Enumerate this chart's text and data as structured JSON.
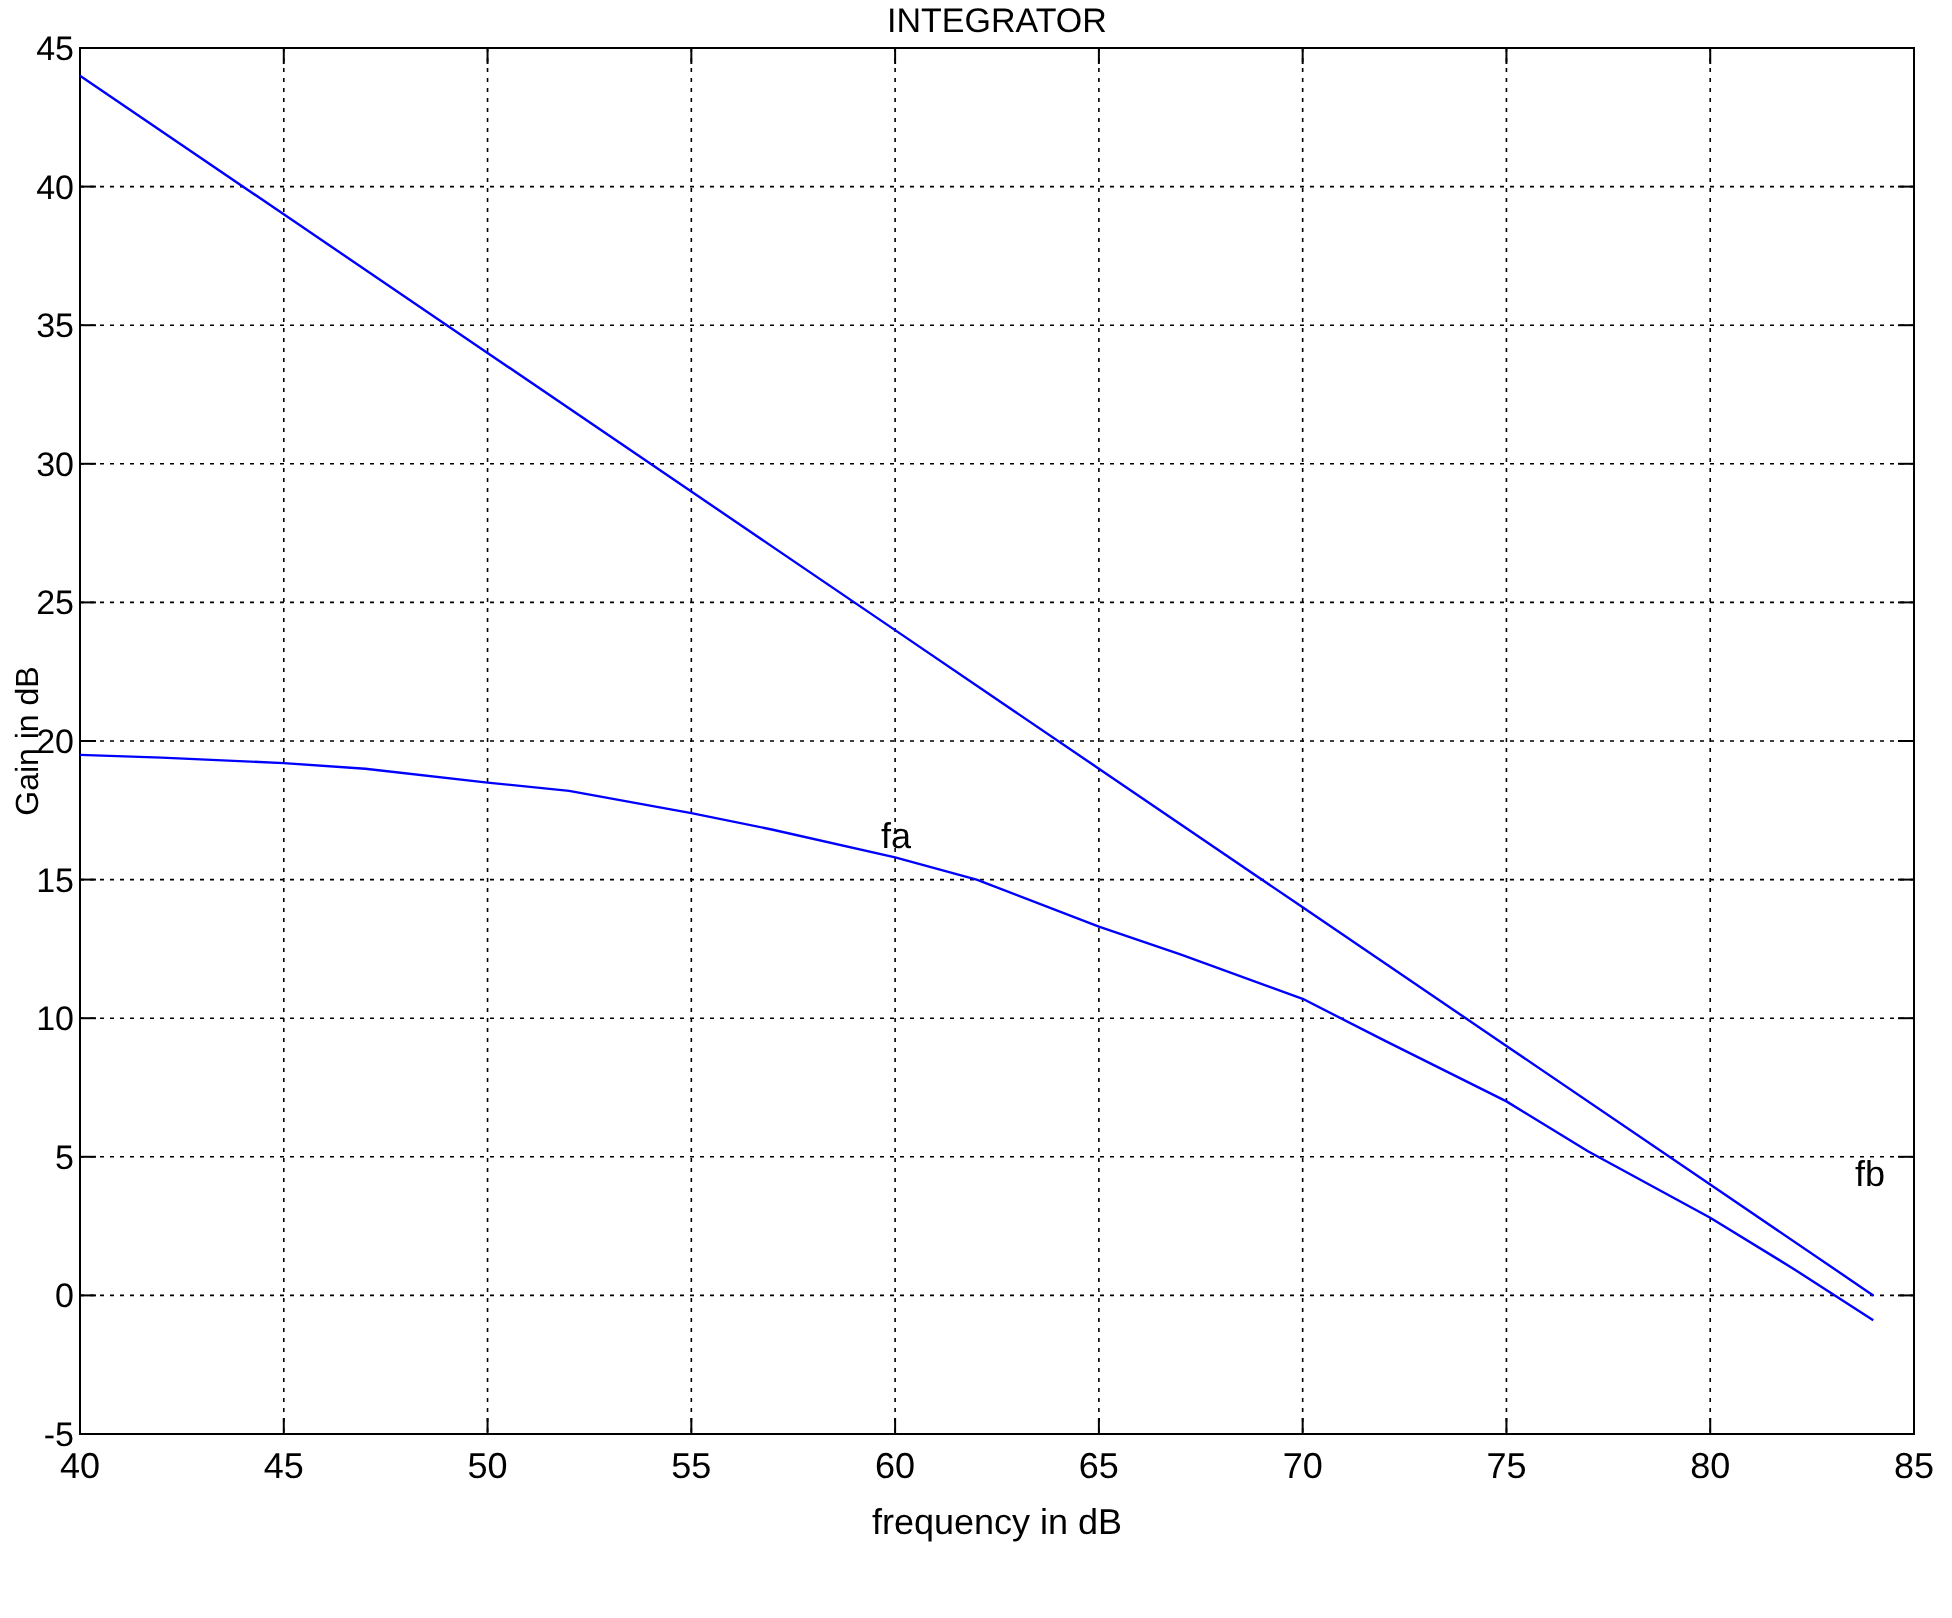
{
  "chart_data": {
    "type": "line",
    "title": "INTEGRATOR",
    "xlabel": "frequency in dB",
    "ylabel": "Gain in dB",
    "xlim": [
      40,
      85
    ],
    "xticks": [
      40,
      45,
      50,
      55,
      60,
      65,
      70,
      75,
      80,
      85
    ],
    "ylim": [
      -5,
      45
    ],
    "yticks": [
      -5,
      0,
      5,
      10,
      15,
      20,
      25,
      30,
      35,
      40,
      45
    ],
    "grid": true,
    "series": [
      {
        "color": "#0000ff",
        "x": [
          40,
          45,
          50,
          55,
          60,
          65,
          70,
          75,
          80,
          84
        ],
        "values": [
          44,
          39,
          34,
          29,
          24,
          19,
          14,
          9,
          4,
          0
        ]
      },
      {
        "color": "#0000ff",
        "x": [
          40,
          42,
          45,
          47,
          50,
          52,
          55,
          57,
          60,
          62,
          65,
          67,
          70,
          72,
          75,
          77,
          80,
          82,
          84
        ],
        "values": [
          19.5,
          19.4,
          19.2,
          19,
          18.5,
          18.2,
          17.4,
          16.8,
          15.8,
          15,
          13.3,
          12.3,
          10.7,
          9.2,
          7,
          5.2,
          2.8,
          1,
          -0.9
        ]
      }
    ],
    "annotations": [
      "fa",
      "fb"
    ]
  }
}
